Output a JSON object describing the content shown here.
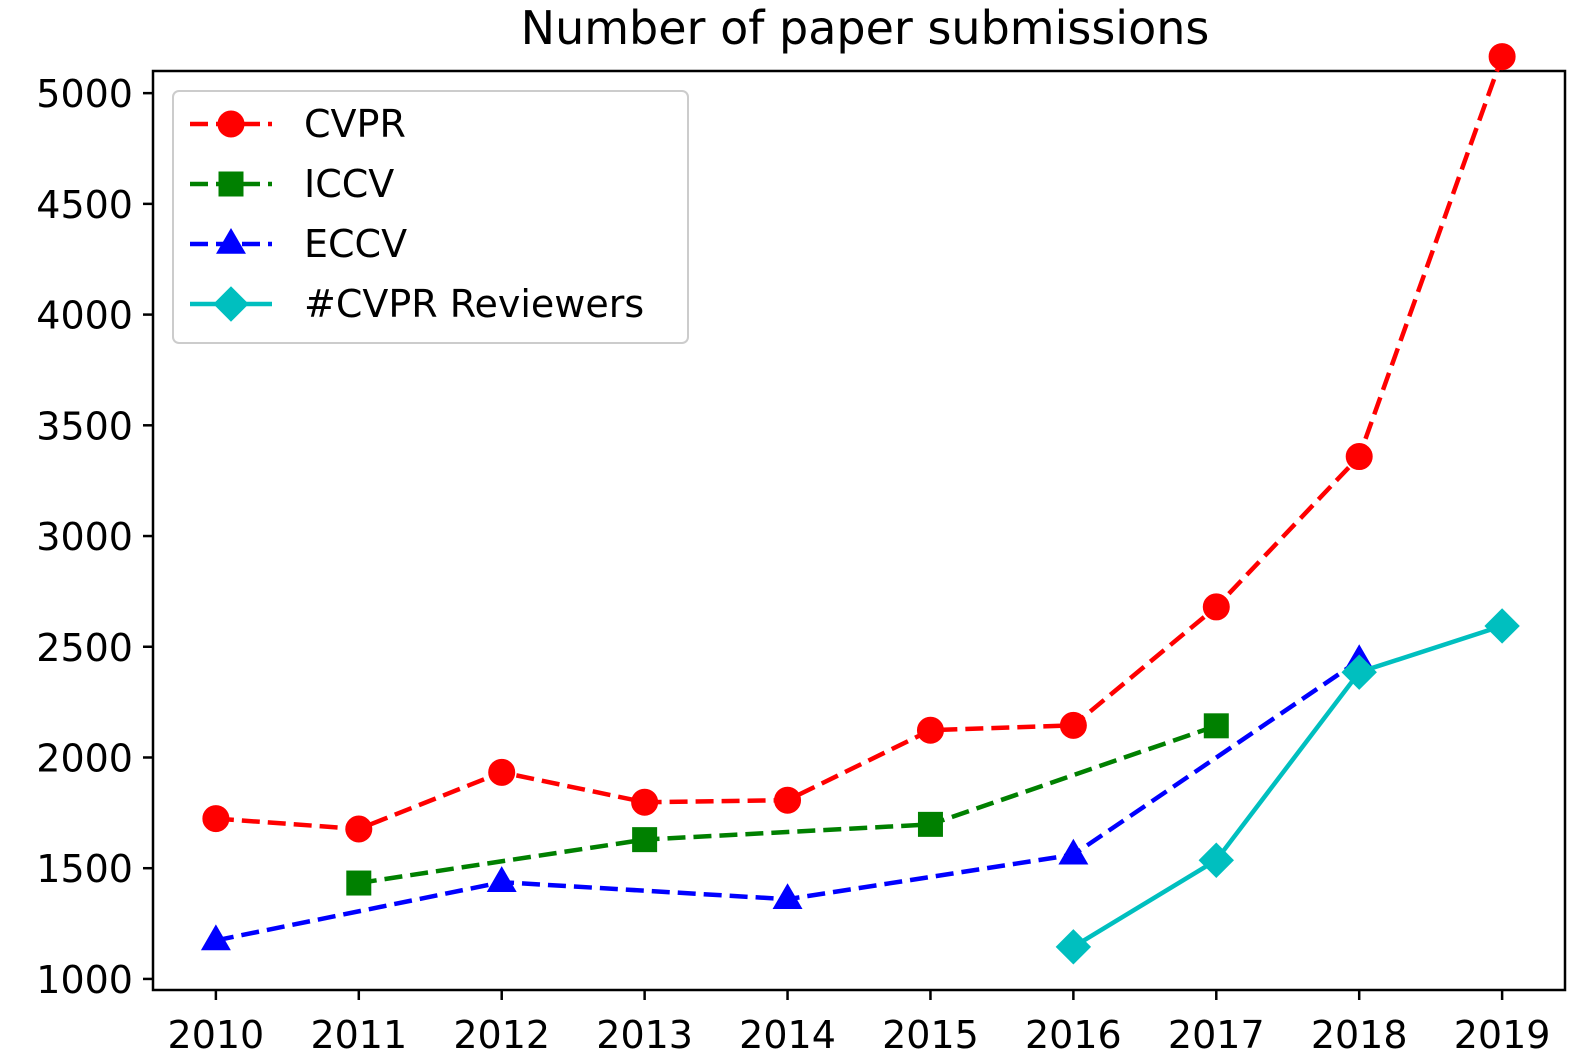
{
  "chart_data": {
    "type": "line",
    "title": "Number of paper submissions",
    "xlabel": "",
    "ylabel": "",
    "xlim": [
      2009.56,
      2019.44
    ],
    "ylim": [
      950,
      5100
    ],
    "x_ticks": [
      2010,
      2011,
      2012,
      2013,
      2014,
      2015,
      2016,
      2017,
      2018,
      2019
    ],
    "y_ticks": [
      1000,
      1500,
      2000,
      2500,
      3000,
      3500,
      4000,
      4500,
      5000
    ],
    "grid": false,
    "legend_position": "upper-left",
    "series": [
      {
        "name": "CVPR",
        "color": "#ff0000",
        "line_style": "dashed",
        "marker": "circle",
        "points": [
          {
            "x": 2010,
            "y": 1724
          },
          {
            "x": 2011,
            "y": 1677
          },
          {
            "x": 2012,
            "y": 1933
          },
          {
            "x": 2013,
            "y": 1798
          },
          {
            "x": 2014,
            "y": 1807
          },
          {
            "x": 2015,
            "y": 2123
          },
          {
            "x": 2016,
            "y": 2145
          },
          {
            "x": 2017,
            "y": 2680
          },
          {
            "x": 2018,
            "y": 3359
          },
          {
            "x": 2019,
            "y": 5165
          }
        ]
      },
      {
        "name": "ICCV",
        "color": "#008000",
        "line_style": "dashed",
        "marker": "square",
        "points": [
          {
            "x": 2011,
            "y": 1433
          },
          {
            "x": 2013,
            "y": 1629
          },
          {
            "x": 2015,
            "y": 1698
          },
          {
            "x": 2017,
            "y": 2143
          }
        ]
      },
      {
        "name": "ECCV",
        "color": "#0000ff",
        "line_style": "dashed",
        "marker": "triangle",
        "points": [
          {
            "x": 2010,
            "y": 1174
          },
          {
            "x": 2012,
            "y": 1437
          },
          {
            "x": 2014,
            "y": 1360
          },
          {
            "x": 2016,
            "y": 1561
          },
          {
            "x": 2018,
            "y": 2439
          }
        ]
      },
      {
        "name": "#CVPR Reviewers",
        "color": "#00bfbf",
        "line_style": "solid",
        "marker": "diamond",
        "points": [
          {
            "x": 2016,
            "y": 1145
          },
          {
            "x": 2017,
            "y": 1536
          },
          {
            "x": 2018,
            "y": 2385
          },
          {
            "x": 2019,
            "y": 2594
          }
        ]
      }
    ]
  }
}
